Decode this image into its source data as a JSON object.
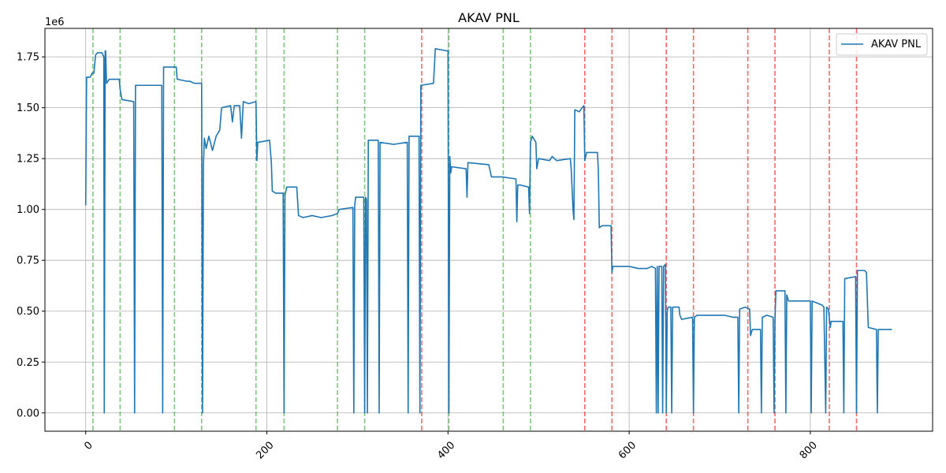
{
  "chart_data": {
    "type": "line",
    "title": "AKAV PNL",
    "xlabel": "",
    "ylabel": "",
    "y_scale_label": "1e6",
    "xlim": [
      -45,
      935
    ],
    "ylim": [
      -0.09,
      1.89
    ],
    "x_ticks": [
      0,
      200,
      400,
      600,
      800
    ],
    "x_tick_labels": [
      "0",
      "200",
      "400",
      "600",
      "800"
    ],
    "y_ticks": [
      0.0,
      0.25,
      0.5,
      0.75,
      1.0,
      1.25,
      1.5,
      1.75
    ],
    "y_tick_labels": [
      "0.00",
      "0.25",
      "0.50",
      "0.75",
      "1.00",
      "1.25",
      "1.50",
      "1.75"
    ],
    "grid": true,
    "legend": {
      "position": "top-right",
      "entries": [
        "AKAV PNL"
      ]
    },
    "series": [
      {
        "name": "AKAV PNL",
        "color": "#1f77b4",
        "points": [
          [
            0,
            1.02
          ],
          [
            1,
            1.65
          ],
          [
            5,
            1.65
          ],
          [
            7,
            1.67
          ],
          [
            9,
            1.67
          ],
          [
            11,
            1.76
          ],
          [
            13,
            1.77
          ],
          [
            18,
            1.77
          ],
          [
            20,
            1.75
          ],
          [
            20.5,
            0.0
          ],
          [
            21.5,
            1.78
          ],
          [
            22,
            1.78
          ],
          [
            23,
            1.62
          ],
          [
            26,
            1.64
          ],
          [
            37,
            1.64
          ],
          [
            38,
            1.59
          ],
          [
            40,
            1.54
          ],
          [
            53,
            1.53
          ],
          [
            54,
            0.0
          ],
          [
            55,
            1.61
          ],
          [
            84,
            1.61
          ],
          [
            85,
            0.0
          ],
          [
            86,
            1.7
          ],
          [
            100,
            1.7
          ],
          [
            101,
            1.64
          ],
          [
            112,
            1.63
          ],
          [
            115,
            1.63
          ],
          [
            120,
            1.62
          ],
          [
            128,
            1.62
          ],
          [
            129,
            0.0
          ],
          [
            130,
            1.22
          ],
          [
            131,
            1.35
          ],
          [
            133,
            1.3
          ],
          [
            136,
            1.36
          ],
          [
            140,
            1.29
          ],
          [
            144,
            1.36
          ],
          [
            148,
            1.39
          ],
          [
            150,
            1.5
          ],
          [
            160,
            1.51
          ],
          [
            162,
            1.43
          ],
          [
            164,
            1.51
          ],
          [
            170,
            1.51
          ],
          [
            172,
            1.35
          ],
          [
            174,
            1.53
          ],
          [
            180,
            1.52
          ],
          [
            188,
            1.53
          ],
          [
            189,
            1.24
          ],
          [
            190,
            1.33
          ],
          [
            203,
            1.34
          ],
          [
            205,
            1.23
          ],
          [
            206,
            1.09
          ],
          [
            210,
            1.08
          ],
          [
            218,
            1.08
          ],
          [
            219,
            0.0
          ],
          [
            220,
            1.07
          ],
          [
            222,
            1.11
          ],
          [
            233,
            1.11
          ],
          [
            235,
            0.97
          ],
          [
            240,
            0.96
          ],
          [
            250,
            0.97
          ],
          [
            260,
            0.96
          ],
          [
            272,
            0.97
          ],
          [
            278,
            0.98
          ],
          [
            280,
            1.0
          ],
          [
            295,
            1.01
          ],
          [
            296,
            0.0
          ],
          [
            297,
            1.02
          ],
          [
            298,
            1.06
          ],
          [
            307,
            1.06
          ],
          [
            308,
            0.0
          ],
          [
            309,
            1.06
          ],
          [
            310,
            1.05
          ],
          [
            311,
            0.0
          ],
          [
            312,
            1.34
          ],
          [
            323,
            1.34
          ],
          [
            324,
            0.0
          ],
          [
            325,
            1.33
          ],
          [
            340,
            1.32
          ],
          [
            355,
            1.33
          ],
          [
            356,
            0.0
          ],
          [
            357,
            1.36
          ],
          [
            368,
            1.36
          ],
          [
            369,
            0.0
          ],
          [
            370,
            1.61
          ],
          [
            384,
            1.62
          ],
          [
            386,
            1.79
          ],
          [
            398,
            1.78
          ],
          [
            400,
            1.78
          ],
          [
            401,
            0.0
          ],
          [
            402,
            1.26
          ],
          [
            403,
            1.18
          ],
          [
            404,
            1.21
          ],
          [
            420,
            1.2
          ],
          [
            421,
            1.06
          ],
          [
            422,
            1.23
          ],
          [
            445,
            1.22
          ],
          [
            448,
            1.16
          ],
          [
            456,
            1.16
          ],
          [
            460,
            1.16
          ],
          [
            475,
            1.15
          ],
          [
            476,
            0.94
          ],
          [
            477,
            1.12
          ],
          [
            480,
            1.12
          ],
          [
            489,
            1.11
          ],
          [
            490,
            0.98
          ],
          [
            491,
            1.33
          ],
          [
            493,
            1.36
          ],
          [
            497,
            1.33
          ],
          [
            498,
            1.2
          ],
          [
            500,
            1.25
          ],
          [
            512,
            1.24
          ],
          [
            515,
            1.26
          ],
          [
            520,
            1.24
          ],
          [
            535,
            1.25
          ],
          [
            536,
            1.2
          ],
          [
            538,
            1.0
          ],
          [
            539,
            0.95
          ],
          [
            540,
            1.49
          ],
          [
            545,
            1.48
          ],
          [
            548,
            1.5
          ],
          [
            550,
            1.51
          ],
          [
            551,
            1.24
          ],
          [
            553,
            1.28
          ],
          [
            565,
            1.28
          ],
          [
            566,
            1.19
          ],
          [
            567,
            0.91
          ],
          [
            570,
            0.92
          ],
          [
            580,
            0.92
          ],
          [
            581,
            0.69
          ],
          [
            582,
            0.72
          ],
          [
            600,
            0.72
          ],
          [
            610,
            0.71
          ],
          [
            620,
            0.71
          ],
          [
            625,
            0.72
          ],
          [
            629,
            0.71
          ],
          [
            630,
            0.0
          ],
          [
            631,
            0.72
          ],
          [
            632,
            0.0
          ],
          [
            633,
            0.72
          ],
          [
            636,
            0.72
          ],
          [
            637,
            0.0
          ],
          [
            638,
            0.72
          ],
          [
            640,
            0.73
          ],
          [
            641,
            0.0
          ],
          [
            642,
            0.5
          ],
          [
            643,
            0.52
          ],
          [
            646,
            0.52
          ],
          [
            647,
            0.0
          ],
          [
            648,
            0.52
          ],
          [
            655,
            0.52
          ],
          [
            656,
            0.48
          ],
          [
            658,
            0.46
          ],
          [
            670,
            0.47
          ],
          [
            671,
            0.0
          ],
          [
            672,
            0.47
          ],
          [
            675,
            0.48
          ],
          [
            690,
            0.48
          ],
          [
            705,
            0.48
          ],
          [
            715,
            0.47
          ],
          [
            720,
            0.47
          ],
          [
            721,
            0.0
          ],
          [
            722,
            0.51
          ],
          [
            728,
            0.52
          ],
          [
            733,
            0.51
          ],
          [
            734,
            0.38
          ],
          [
            736,
            0.41
          ],
          [
            745,
            0.41
          ],
          [
            746,
            0.0
          ],
          [
            747,
            0.47
          ],
          [
            752,
            0.48
          ],
          [
            759,
            0.47
          ],
          [
            760,
            0.0
          ],
          [
            761,
            0.46
          ],
          [
            762,
            0.6
          ],
          [
            772,
            0.6
          ],
          [
            773,
            0.0
          ],
          [
            774,
            0.58
          ],
          [
            776,
            0.55
          ],
          [
            800,
            0.55
          ],
          [
            801,
            0.0
          ],
          [
            802,
            0.55
          ],
          [
            813,
            0.53
          ],
          [
            815,
            0.52
          ],
          [
            817,
            0.0
          ],
          [
            818,
            0.52
          ],
          [
            820,
            0.51
          ],
          [
            822,
            0.42
          ],
          [
            823,
            0.45
          ],
          [
            836,
            0.45
          ],
          [
            837,
            0.0
          ],
          [
            838,
            0.66
          ],
          [
            850,
            0.67
          ],
          [
            851,
            0.0
          ],
          [
            852,
            0.7
          ],
          [
            860,
            0.7
          ],
          [
            862,
            0.69
          ],
          [
            864,
            0.42
          ],
          [
            873,
            0.41
          ],
          [
            874,
            0.0
          ],
          [
            875,
            0.41
          ],
          [
            890,
            0.41
          ]
        ]
      }
    ],
    "vlines": {
      "green": {
        "color": "#2ca02c",
        "x": [
          8,
          38,
          98,
          128,
          188,
          219,
          278,
          308,
          401,
          461,
          491
        ]
      },
      "red": {
        "color": "#ff0000",
        "x": [
          371,
          551,
          581,
          641,
          671,
          731,
          761,
          821,
          851
        ]
      }
    }
  }
}
